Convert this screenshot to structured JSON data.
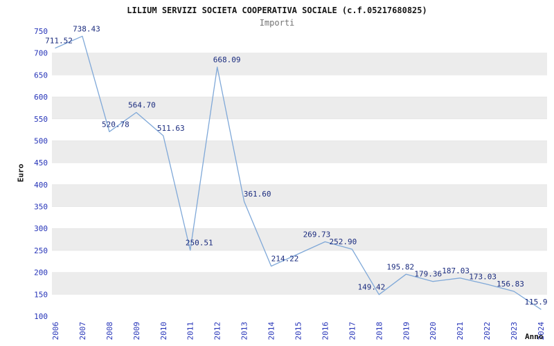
{
  "header": {
    "title": "LILIUM SERVIZI SOCIETA COOPERATIVA SOCIALE (c.f.05217680825)",
    "subtitle": "Importi"
  },
  "chart_data": {
    "type": "line",
    "title": "LILIUM SERVIZI SOCIETA COOPERATIVA SOCIALE (c.f.05217680825)",
    "subtitle": "Importi",
    "xlabel": "Anno",
    "ylabel": "Euro",
    "categories": [
      "2006",
      "2007",
      "2008",
      "2009",
      "2010",
      "2011",
      "2012",
      "2013",
      "2014",
      "2015",
      "2016",
      "2017",
      "2018",
      "2019",
      "2020",
      "2021",
      "2022",
      "2023",
      "2024"
    ],
    "values": [
      711.52,
      738.43,
      520.78,
      564.7,
      511.63,
      250.51,
      668.09,
      361.6,
      214.22,
      242.0,
      269.73,
      252.9,
      149.42,
      195.82,
      179.36,
      187.03,
      173.03,
      156.83,
      115.9
    ],
    "point_labels": [
      "711.52",
      "738.43",
      "520.78",
      "564.70",
      "511.63",
      "250.51",
      "668.09",
      "361.60",
      "214.22",
      "",
      "269.73",
      "252.90",
      "149.42",
      "195.82",
      "179.36",
      "187.03",
      "173.03",
      "156.83",
      "115.9"
    ],
    "label_dx": [
      5,
      6,
      9,
      8,
      11,
      13,
      14,
      19,
      20,
      0,
      -12,
      -13,
      -11,
      -8,
      -7,
      -6,
      -6,
      -5,
      -7
    ],
    "ylim": [
      100,
      750
    ],
    "ytick_step": 50,
    "grid": "alternating-horizontal-bands",
    "legend": "none",
    "colors": {
      "line": "#7fa8d8",
      "point_label": "#1a2b7e",
      "tick_label": "#2533b8",
      "band": "#ececec",
      "gridline": "#e2e2e2",
      "title": "#151515",
      "subtitle": "#737373",
      "axis_label": "#111111"
    }
  }
}
